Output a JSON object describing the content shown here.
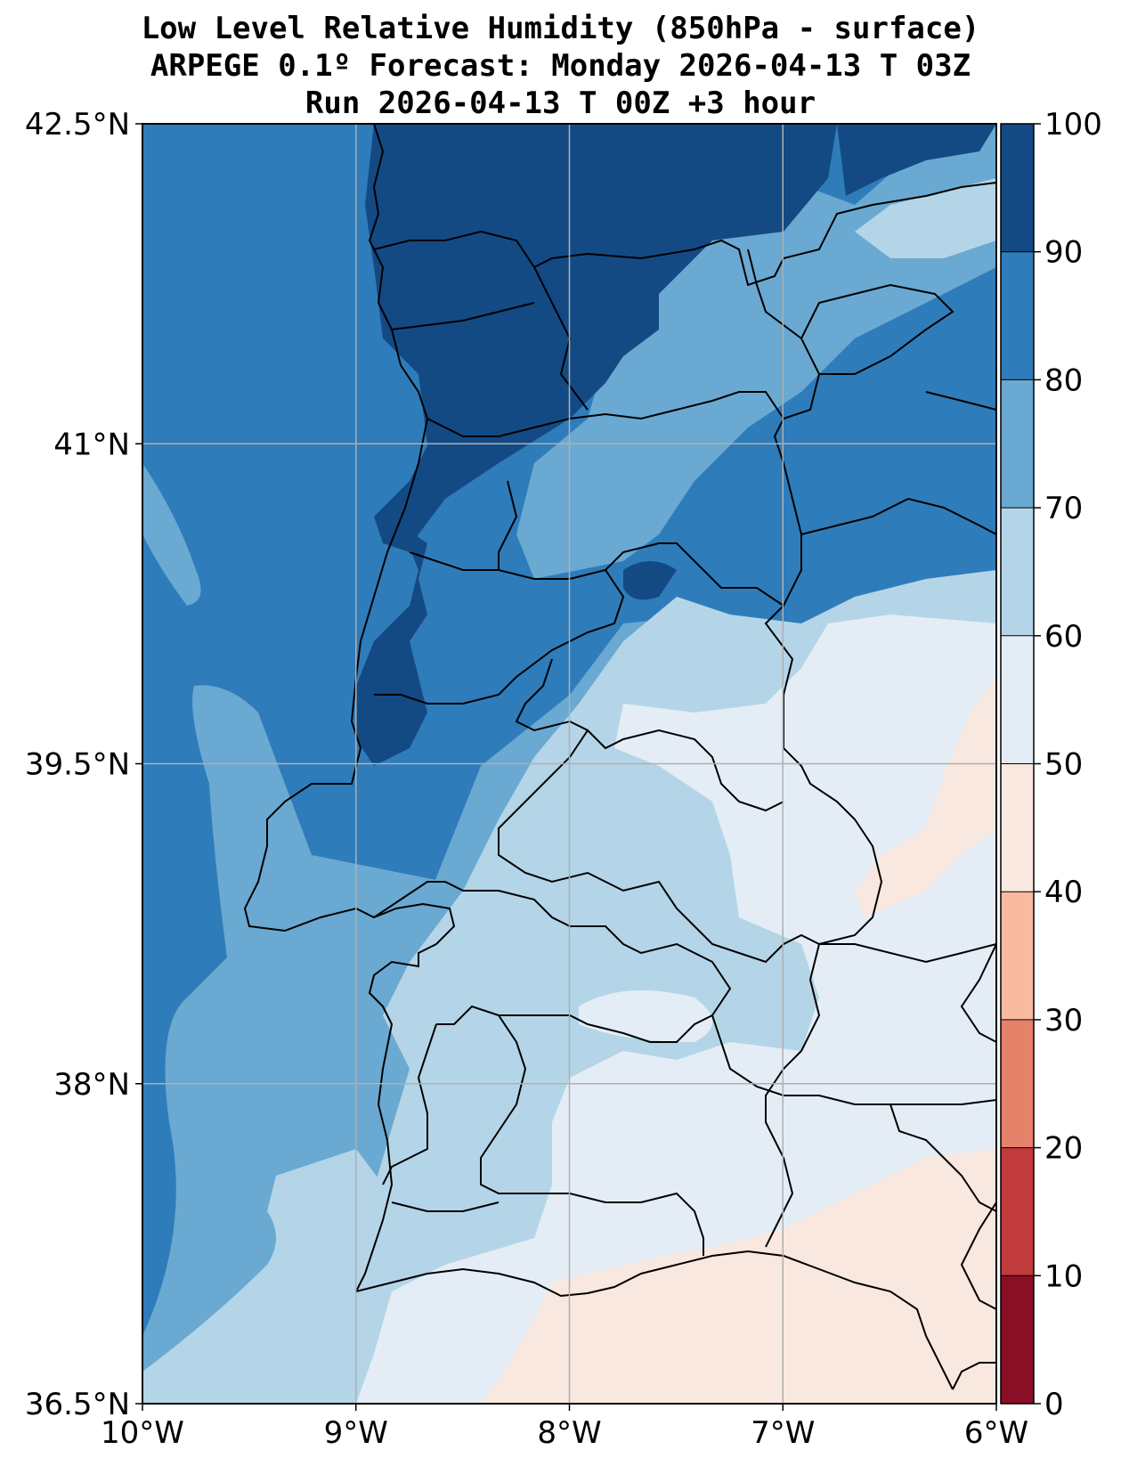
{
  "title": {
    "line1": "Low Level Relative Humidity (850hPa - surface)",
    "line2": "ARPEGE 0.1º Forecast: Monday 2026-04-13 T 03Z",
    "line3": "Run 2026-04-13 T 00Z +3 hour"
  },
  "map": {
    "lon_range": [
      -10,
      -6
    ],
    "lat_range": [
      36.5,
      42.5
    ],
    "lon_ticks": [
      {
        "value": -10,
        "label": "10°W"
      },
      {
        "value": -9,
        "label": "9°W"
      },
      {
        "value": -8,
        "label": "8°W"
      },
      {
        "value": -7,
        "label": "7°W"
      },
      {
        "value": -6,
        "label": "6°W"
      }
    ],
    "lat_ticks": [
      {
        "value": 42.5,
        "label": "42.5°N"
      },
      {
        "value": 41,
        "label": "41°N"
      },
      {
        "value": 39.5,
        "label": "39.5°N"
      },
      {
        "value": 38,
        "label": "38°N"
      },
      {
        "value": 36.5,
        "label": "36.5°N"
      }
    ]
  },
  "colorbar": {
    "levels": [
      {
        "min": 0,
        "max": 10,
        "color": "#8a0e26"
      },
      {
        "min": 10,
        "max": 20,
        "color": "#c13a3c"
      },
      {
        "min": 20,
        "max": 30,
        "color": "#e4826a"
      },
      {
        "min": 30,
        "max": 40,
        "color": "#f9bba0"
      },
      {
        "min": 40,
        "max": 50,
        "color": "#f9e8df"
      },
      {
        "min": 50,
        "max": 60,
        "color": "#e4edf5"
      },
      {
        "min": 60,
        "max": 70,
        "color": "#b4d5e7"
      },
      {
        "min": 70,
        "max": 80,
        "color": "#6aa9d1"
      },
      {
        "min": 80,
        "max": 90,
        "color": "#2f7cba"
      },
      {
        "min": 90,
        "max": 100,
        "color": "#144a84"
      }
    ],
    "tick_labels": [
      "0",
      "10",
      "20",
      "30",
      "40",
      "50",
      "60",
      "70",
      "80",
      "90",
      "100"
    ]
  },
  "field_colors": {
    "rh_40_50": "#f9e8df",
    "rh_50_60": "#e4edf5",
    "rh_60_70": "#b4d5e7",
    "rh_70_80": "#6aa9d1",
    "rh_80_90": "#2f7cba",
    "rh_90_100": "#144a84"
  }
}
